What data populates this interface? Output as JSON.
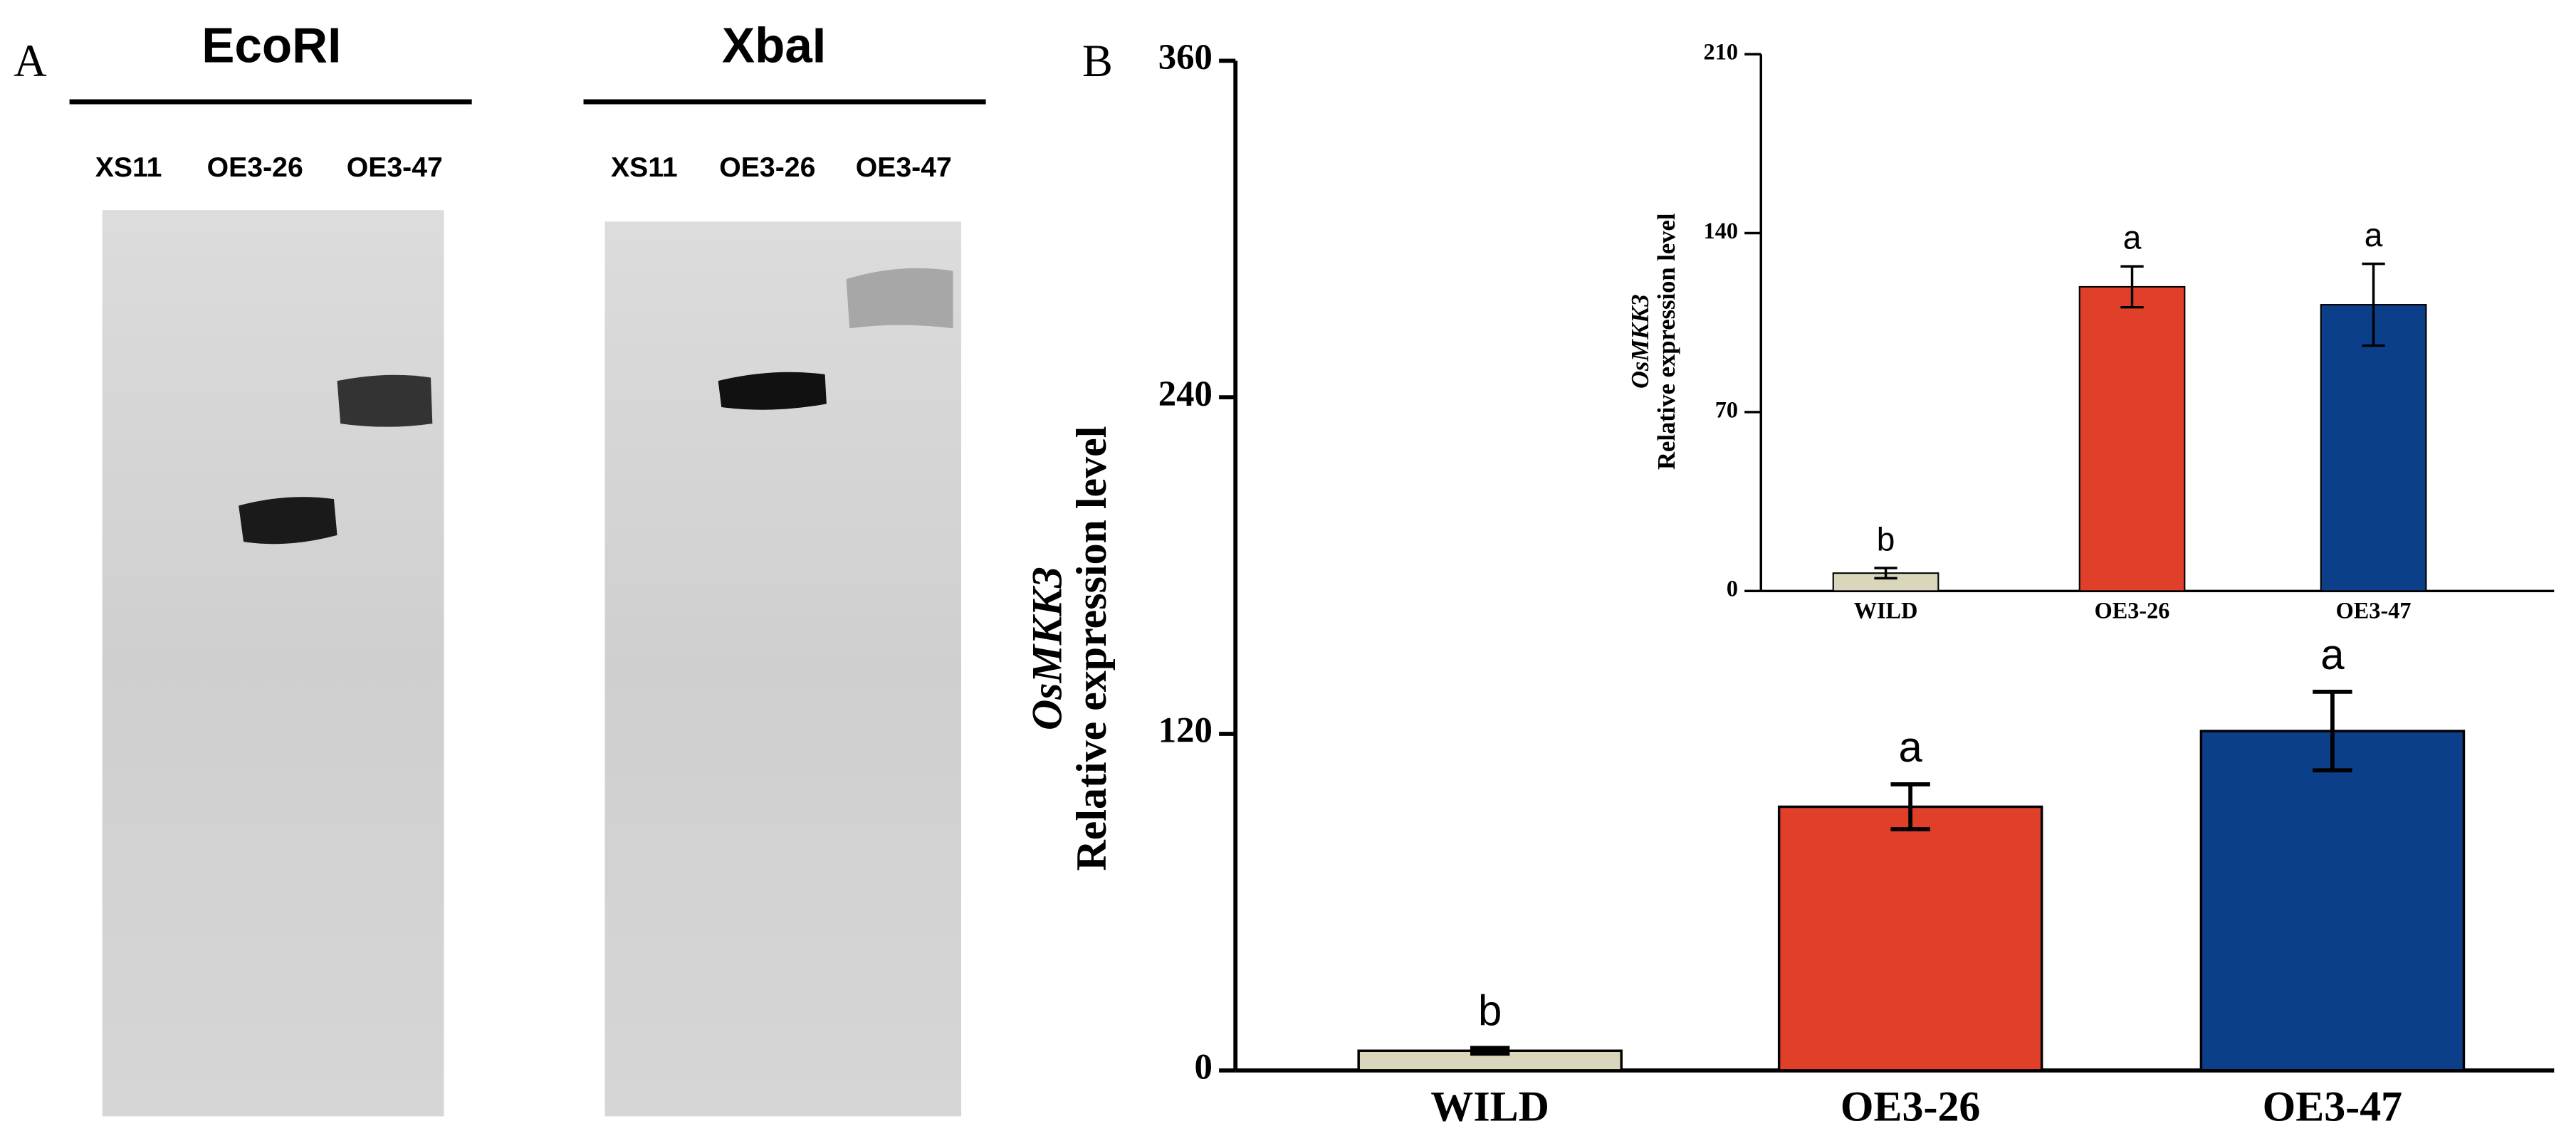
{
  "panel_a": {
    "label": "A",
    "blots": [
      {
        "enzyme": "EcoRI",
        "lanes": [
          "XS11",
          "OE3-26",
          "OE3-47"
        ]
      },
      {
        "enzyme": "XbaI",
        "lanes": [
          "XS11",
          "OE3-26",
          "OE3-47"
        ]
      }
    ]
  },
  "chart_data": [
    {
      "type": "bar",
      "panel_label": "B",
      "y_label": [
        "OsMKK3",
        "Relative expression level"
      ],
      "categories": [
        "WILD",
        "OE3-26",
        "OE3-47"
      ],
      "values": [
        7,
        94,
        121
      ],
      "errors": [
        1,
        8,
        14
      ],
      "annotations": [
        "b",
        "a",
        "a"
      ],
      "colors": [
        "#d9d6bb",
        "#e0402a",
        "#0b3f8a"
      ],
      "ylim": [
        0,
        360
      ],
      "yticks": [
        0,
        120,
        240,
        360
      ]
    },
    {
      "type": "bar",
      "y_label": [
        "OsMKK3",
        "Relative expression level"
      ],
      "categories": [
        "WILD",
        "OE3-26",
        "OE3-47"
      ],
      "values": [
        7,
        119,
        112
      ],
      "errors": [
        2,
        8,
        16
      ],
      "annotations": [
        "b",
        "a",
        "a"
      ],
      "colors": [
        "#d9d6bb",
        "#e0402a",
        "#0b3f8a"
      ],
      "ylim": [
        0,
        210
      ],
      "yticks": [
        0,
        70,
        140,
        210
      ]
    }
  ]
}
